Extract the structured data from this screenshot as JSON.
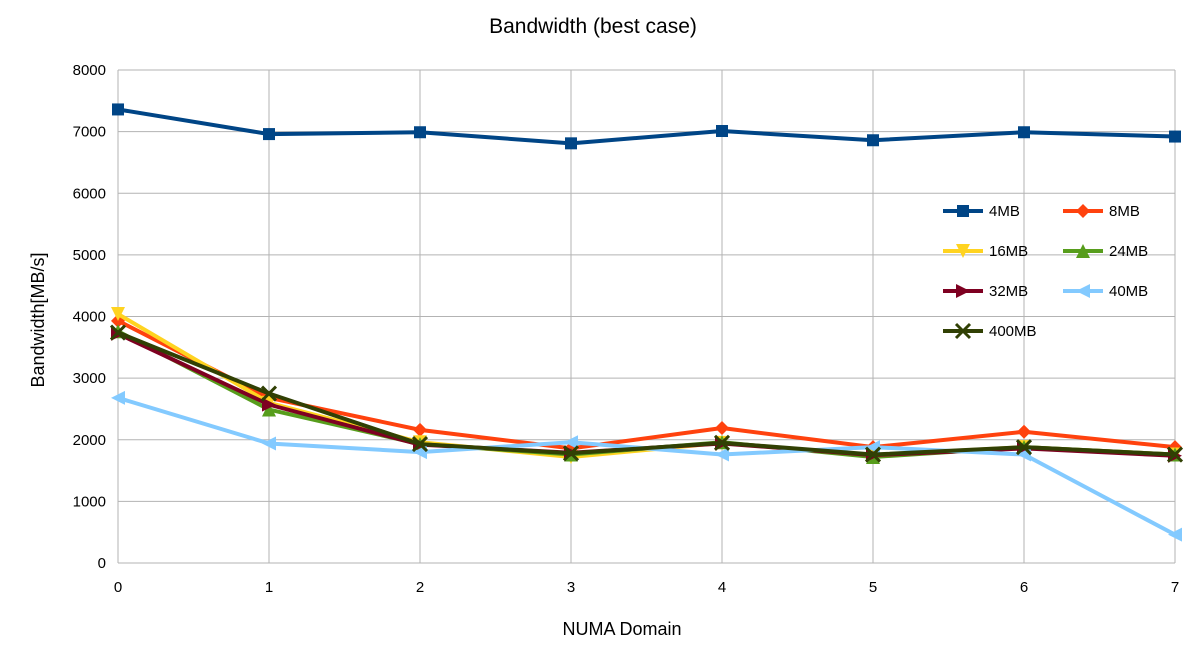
{
  "chart_data": {
    "type": "line",
    "title": "Bandwidth (best case)",
    "xlabel": "NUMA Domain",
    "ylabel": "Bandwidth[MB/s]",
    "x": [
      0,
      1,
      2,
      3,
      4,
      5,
      6,
      7
    ],
    "xlim": [
      0,
      7
    ],
    "ylim": [
      0,
      8000
    ],
    "yticks": [
      0,
      1000,
      2000,
      3000,
      4000,
      5000,
      6000,
      7000,
      8000
    ],
    "grid": true,
    "legend_position": "right",
    "series": [
      {
        "name": "4MB",
        "color": "#004586",
        "marker": "square",
        "values": [
          7360,
          6960,
          6990,
          6810,
          7010,
          6860,
          6990,
          6920
        ]
      },
      {
        "name": "8MB",
        "color": "#ff420e",
        "marker": "diamond",
        "values": [
          3930,
          2680,
          2160,
          1860,
          2190,
          1880,
          2130,
          1880
        ]
      },
      {
        "name": "16MB",
        "color": "#ffd320",
        "marker": "triangle-down",
        "values": [
          4040,
          2600,
          1960,
          1720,
          1950,
          1750,
          1880,
          1760
        ]
      },
      {
        "name": "24MB",
        "color": "#579d1c",
        "marker": "triangle-up",
        "values": [
          3760,
          2490,
          1930,
          1760,
          1960,
          1720,
          1880,
          1760
        ]
      },
      {
        "name": "32MB",
        "color": "#7e0021",
        "marker": "triangle-right",
        "values": [
          3720,
          2570,
          1920,
          1790,
          1940,
          1750,
          1860,
          1740
        ]
      },
      {
        "name": "40MB",
        "color": "#83caff",
        "marker": "triangle-left",
        "values": [
          2680,
          1940,
          1800,
          1960,
          1760,
          1880,
          1760,
          460
        ]
      },
      {
        "name": "400MB",
        "color": "#314004",
        "marker": "x",
        "values": [
          3740,
          2750,
          1930,
          1780,
          1950,
          1760,
          1880,
          1760
        ]
      }
    ]
  }
}
